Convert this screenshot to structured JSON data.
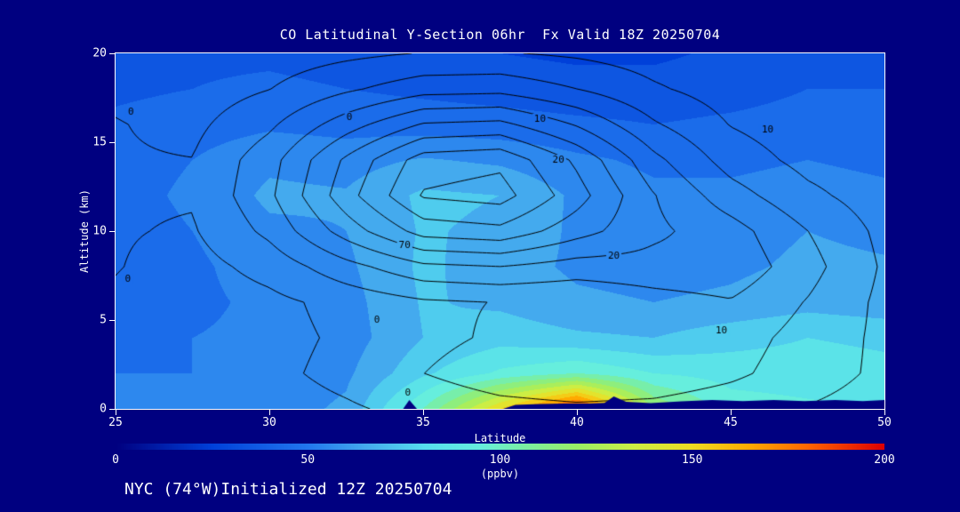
{
  "page": {
    "background": "#000080",
    "text_color": "#ffffff"
  },
  "header": {
    "title": "CO Latitudinal Y-Section 06hr  Fx Valid 18Z 20250704"
  },
  "footer": {
    "annotation": "NYC (74°W)Initialized 12Z 20250704"
  },
  "chart_data": {
    "type": "heatmap",
    "title": "CO Latitudinal Y-Section 06hr  Fx Valid 18Z 20250704",
    "xlabel": "Latitude",
    "ylabel": "Altitude (km)",
    "xlim": [
      25,
      50
    ],
    "ylim": [
      0,
      20
    ],
    "xticks": [
      25,
      30,
      35,
      40,
      45,
      50
    ],
    "yticks": [
      0,
      5,
      10,
      15,
      20
    ],
    "x": [
      25,
      27.5,
      30,
      32.5,
      35,
      37.5,
      40,
      42.5,
      45,
      47.5,
      50
    ],
    "y": [
      0,
      2,
      4,
      6,
      8,
      10,
      12,
      14,
      16,
      18,
      20
    ],
    "values": [
      [
        52,
        52,
        55,
        62,
        100,
        150,
        195,
        120,
        95,
        92,
        90
      ],
      [
        50,
        50,
        52,
        58,
        78,
        92,
        100,
        90,
        86,
        85,
        83
      ],
      [
        48,
        50,
        52,
        55,
        70,
        76,
        72,
        70,
        76,
        80,
        78
      ],
      [
        46,
        48,
        52,
        56,
        71,
        68,
        62,
        60,
        62,
        66,
        63
      ],
      [
        45,
        48,
        55,
        58,
        72,
        65,
        58,
        56,
        58,
        62,
        61
      ],
      [
        45,
        50,
        58,
        60,
        71,
        68,
        58,
        54,
        56,
        60,
        58
      ],
      [
        46,
        52,
        62,
        61,
        72,
        70,
        58,
        52,
        52,
        54,
        52
      ],
      [
        45,
        50,
        58,
        56,
        61,
        58,
        52,
        48,
        48,
        50,
        48
      ],
      [
        42,
        45,
        48,
        46,
        45,
        44,
        42,
        40,
        42,
        44,
        44
      ],
      [
        38,
        40,
        42,
        40,
        38,
        36,
        34,
        34,
        36,
        40,
        40
      ],
      [
        36,
        38,
        38,
        36,
        32,
        30,
        28,
        28,
        32,
        36,
        36
      ]
    ],
    "band_interval": 10,
    "colormap": [
      [
        0,
        "#000080"
      ],
      [
        25,
        "#0040d9"
      ],
      [
        50,
        "#2277ee"
      ],
      [
        65,
        "#44aaee"
      ],
      [
        80,
        "#55ddee"
      ],
      [
        95,
        "#66eedd"
      ],
      [
        105,
        "#77eeaa"
      ],
      [
        120,
        "#99ee66"
      ],
      [
        135,
        "#ccee44"
      ],
      [
        150,
        "#eedd22"
      ],
      [
        165,
        "#ffaa00"
      ],
      [
        180,
        "#ff6600"
      ],
      [
        200,
        "#dd0000"
      ]
    ],
    "colorbar": {
      "min": 0,
      "max": 200,
      "ticks": [
        0,
        50,
        100,
        150,
        200
      ],
      "label": "(ppbv)"
    },
    "contours": {
      "color": "#000000",
      "levels": [
        0,
        10,
        20,
        30,
        40,
        50,
        60,
        70
      ],
      "grid": [
        [
          -7.5,
          -6.6,
          -4.6,
          -1.3,
          2.9,
          6.6,
          8.1,
          7.0,
          3.6,
          -0.6,
          -4.4
        ],
        [
          -7.2,
          -5.7,
          -2.4,
          3.0,
          9.9,
          15.7,
          18.4,
          17.2,
          12.2,
          4.6,
          -2.1
        ],
        [
          -4.0,
          -6.1,
          -3.2,
          1.7,
          7.3,
          11.5,
          13.7,
          15.7,
          14.5,
          6.3,
          -2.3
        ],
        [
          -1.5,
          -6.1,
          -2.6,
          3.2,
          8.5,
          10.3,
          10.6,
          15.9,
          19.2,
          9.4,
          -2.5
        ],
        [
          0.5,
          -4.0,
          3.7,
          16.4,
          27.7,
          29.9,
          25.4,
          26.3,
          27.2,
          13.7,
          -1.4
        ],
        [
          0.8,
          -1.0,
          12.5,
          34.5,
          54.2,
          57.1,
          44.0,
          32.2,
          24.2,
          10.1,
          -2.7
        ],
        [
          1.0,
          0.9,
          18.0,
          46.0,
          71.0,
          74.2,
          54.2,
          30.5,
          14.3,
          2.4,
          -5.2
        ],
        [
          0.8,
          0.2,
          16.0,
          41.8,
          64.9,
          67.6,
          48.0,
          22.7,
          5.6,
          -3.2,
          -6.9
        ],
        [
          0.5,
          -2.5,
          8.1,
          25.4,
          40.9,
          42.7,
          29.1,
          11.2,
          -0.4,
          -6.2,
          -7.7
        ],
        [
          -2.0,
          -5.3,
          -0.2,
          8.3,
          15.8,
          16.7,
          10.0,
          1.3,
          -4.6,
          -7.1,
          -7.8
        ],
        [
          -7.8,
          -7.1,
          -5.2,
          -2.3,
          0.4,
          0.7,
          -1.6,
          -4.7,
          -6.8,
          -7.7,
          -7.9
        ]
      ],
      "labels": [
        {
          "text": "0",
          "lat": 25.5,
          "alt": 16.7
        },
        {
          "text": "0",
          "lat": 32.6,
          "alt": 16.4
        },
        {
          "text": "10",
          "lat": 38.8,
          "alt": 16.3
        },
        {
          "text": "10",
          "lat": 46.2,
          "alt": 15.7
        },
        {
          "text": "20",
          "lat": 39.4,
          "alt": 14.0
        },
        {
          "text": "70",
          "lat": 34.4,
          "alt": 9.2
        },
        {
          "text": "20",
          "lat": 41.2,
          "alt": 8.6
        },
        {
          "text": "0",
          "lat": 25.4,
          "alt": 7.3
        },
        {
          "text": "0",
          "lat": 33.5,
          "alt": 5.0
        },
        {
          "text": "10",
          "lat": 44.7,
          "alt": 4.4
        },
        {
          "text": "0",
          "lat": 34.5,
          "alt": 0.9
        }
      ]
    },
    "terrain": {
      "color": "#000080",
      "polygons": [
        [
          [
            37.6,
            0
          ],
          [
            38.0,
            0.22
          ],
          [
            38.8,
            0.28
          ],
          [
            39.6,
            0.3
          ],
          [
            40.4,
            0.3
          ],
          [
            40.9,
            0.34
          ],
          [
            41.2,
            0.7
          ],
          [
            41.6,
            0.4
          ],
          [
            42.4,
            0.32
          ],
          [
            43.4,
            0.42
          ],
          [
            44.4,
            0.5
          ],
          [
            45.4,
            0.44
          ],
          [
            46.4,
            0.5
          ],
          [
            47.4,
            0.44
          ],
          [
            48.4,
            0.5
          ],
          [
            49.3,
            0.44
          ],
          [
            50,
            0.5
          ]
        ],
        [
          [
            34.35,
            0
          ],
          [
            34.55,
            0.5
          ],
          [
            34.8,
            0
          ]
        ]
      ]
    }
  }
}
